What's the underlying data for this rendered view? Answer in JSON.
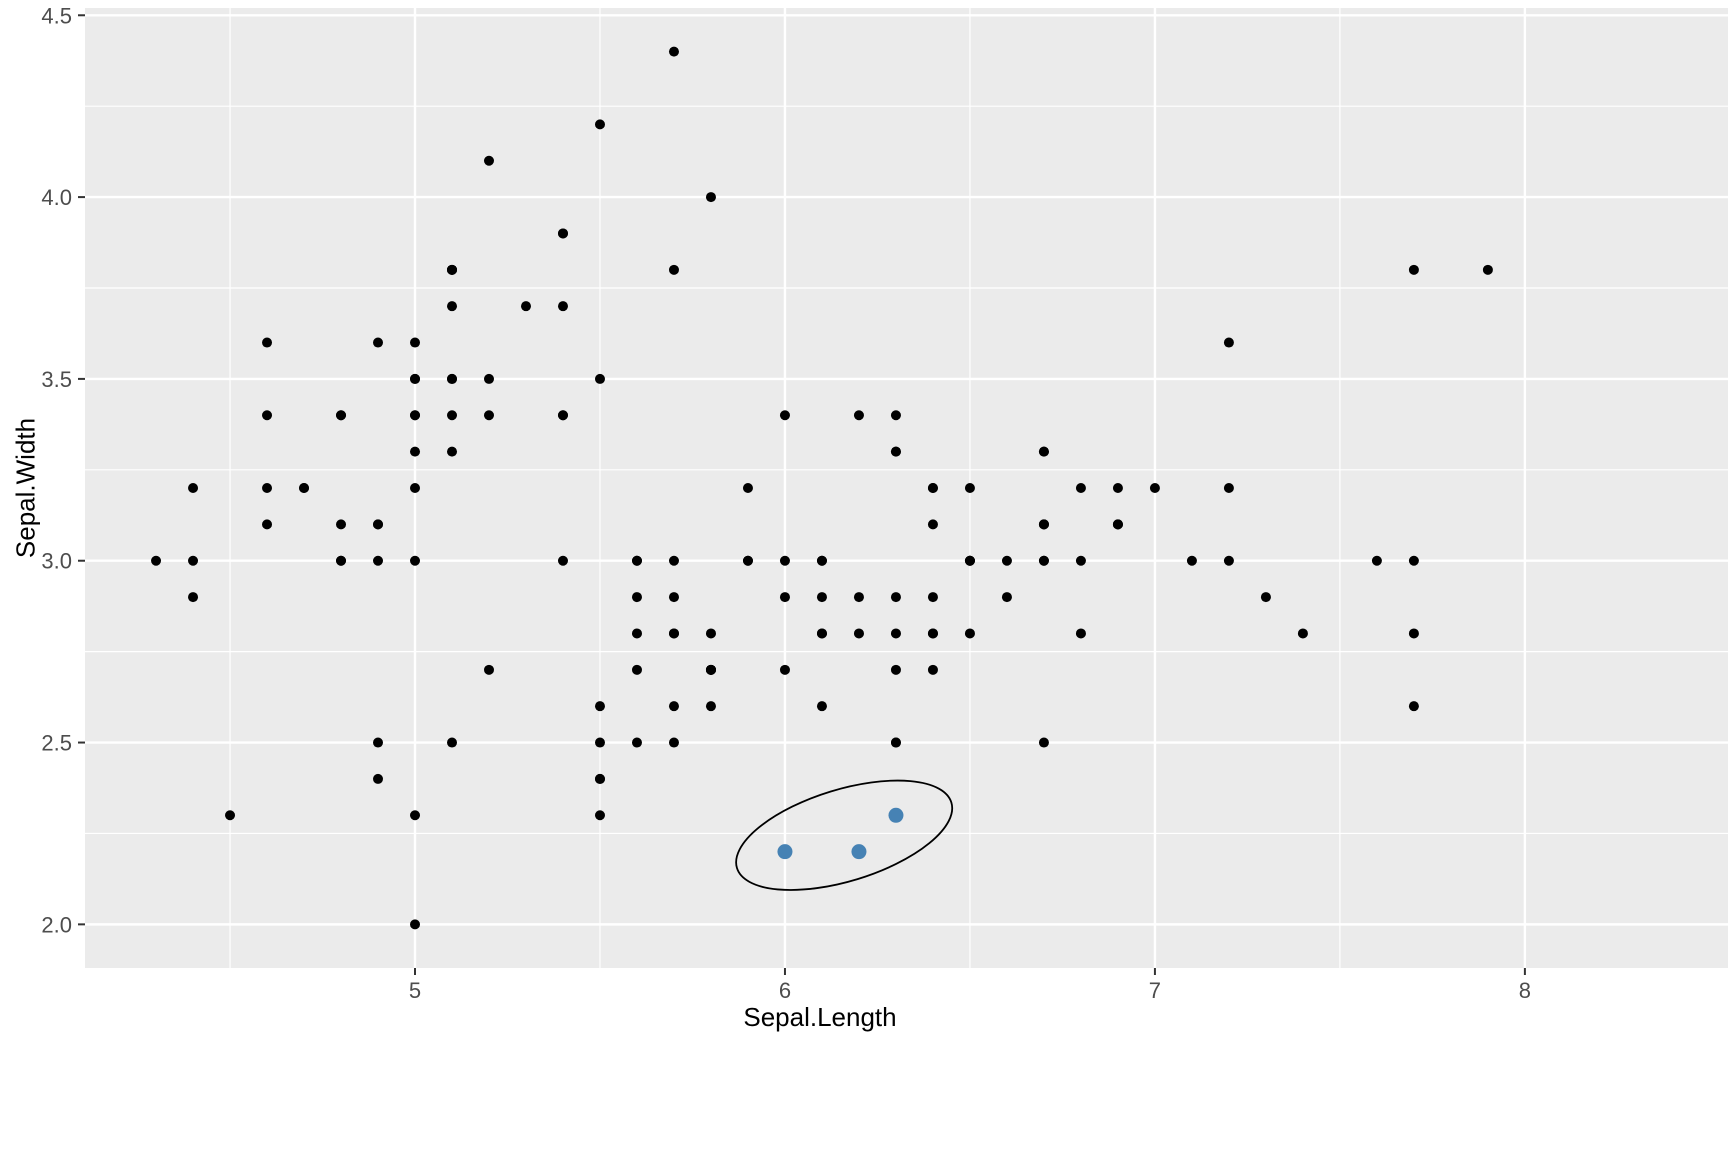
{
  "chart_data": {
    "type": "scatter",
    "title": "",
    "xlabel": "Sepal.Length",
    "ylabel": "Sepal.Width",
    "xlim": [
      4.108,
      8.549
    ],
    "ylim": [
      1.88,
      4.52
    ],
    "x_tick_values": [
      5,
      6,
      7,
      8
    ],
    "x_tick_labels": [
      "5",
      "6",
      "7",
      "8"
    ],
    "y_tick_values": [
      2.0,
      2.5,
      3.0,
      3.5,
      4.0,
      4.5
    ],
    "y_tick_labels": [
      "2.0",
      "2.5",
      "3.0",
      "3.5",
      "4.0",
      "4.5"
    ],
    "x_minor_ticks": [
      4.5,
      5.5,
      6.5,
      7.5
    ],
    "y_minor_ticks": [
      2.25,
      2.75,
      3.25,
      3.75,
      4.25
    ],
    "grid": "on",
    "legend": "none",
    "points": [
      [
        5.1,
        3.5
      ],
      [
        4.9,
        3.0
      ],
      [
        4.7,
        3.2
      ],
      [
        4.6,
        3.1
      ],
      [
        5.0,
        3.6
      ],
      [
        5.4,
        3.9
      ],
      [
        4.6,
        3.4
      ],
      [
        5.0,
        3.4
      ],
      [
        4.4,
        2.9
      ],
      [
        4.9,
        3.1
      ],
      [
        5.4,
        3.7
      ],
      [
        4.8,
        3.4
      ],
      [
        4.8,
        3.0
      ],
      [
        4.3,
        3.0
      ],
      [
        5.8,
        4.0
      ],
      [
        5.7,
        4.4
      ],
      [
        5.4,
        3.9
      ],
      [
        5.1,
        3.5
      ],
      [
        5.7,
        3.8
      ],
      [
        5.1,
        3.8
      ],
      [
        5.4,
        3.4
      ],
      [
        5.1,
        3.7
      ],
      [
        4.6,
        3.6
      ],
      [
        5.1,
        3.3
      ],
      [
        4.8,
        3.4
      ],
      [
        5.0,
        3.0
      ],
      [
        5.0,
        3.4
      ],
      [
        5.2,
        3.5
      ],
      [
        5.2,
        3.4
      ],
      [
        4.7,
        3.2
      ],
      [
        4.8,
        3.1
      ],
      [
        5.4,
        3.4
      ],
      [
        5.2,
        4.1
      ],
      [
        5.5,
        4.2
      ],
      [
        4.9,
        3.1
      ],
      [
        5.0,
        3.2
      ],
      [
        5.5,
        3.5
      ],
      [
        4.9,
        3.6
      ],
      [
        4.4,
        3.0
      ],
      [
        5.1,
        3.4
      ],
      [
        5.0,
        3.5
      ],
      [
        4.5,
        2.3
      ],
      [
        4.4,
        3.2
      ],
      [
        5.0,
        3.5
      ],
      [
        5.1,
        3.8
      ],
      [
        4.8,
        3.0
      ],
      [
        5.1,
        3.8
      ],
      [
        4.6,
        3.2
      ],
      [
        5.3,
        3.7
      ],
      [
        5.0,
        3.3
      ],
      [
        7.0,
        3.2
      ],
      [
        6.4,
        3.2
      ],
      [
        6.9,
        3.1
      ],
      [
        5.5,
        2.3
      ],
      [
        6.5,
        2.8
      ],
      [
        5.7,
        2.8
      ],
      [
        6.3,
        3.3
      ],
      [
        4.9,
        2.4
      ],
      [
        6.6,
        2.9
      ],
      [
        5.2,
        2.7
      ],
      [
        5.0,
        2.0
      ],
      [
        5.9,
        3.0
      ],
      [
        6.0,
        2.2
      ],
      [
        6.1,
        2.9
      ],
      [
        5.6,
        2.9
      ],
      [
        6.7,
        3.1
      ],
      [
        5.6,
        3.0
      ],
      [
        5.8,
        2.7
      ],
      [
        6.2,
        2.2
      ],
      [
        5.6,
        2.5
      ],
      [
        5.9,
        3.2
      ],
      [
        6.1,
        2.8
      ],
      [
        6.3,
        2.5
      ],
      [
        6.1,
        2.8
      ],
      [
        6.4,
        2.9
      ],
      [
        6.6,
        3.0
      ],
      [
        6.8,
        2.8
      ],
      [
        6.7,
        3.0
      ],
      [
        6.0,
        2.9
      ],
      [
        5.7,
        2.6
      ],
      [
        5.5,
        2.4
      ],
      [
        5.5,
        2.4
      ],
      [
        5.8,
        2.7
      ],
      [
        6.0,
        2.7
      ],
      [
        5.4,
        3.0
      ],
      [
        6.0,
        3.4
      ],
      [
        6.7,
        3.1
      ],
      [
        6.3,
        2.3
      ],
      [
        5.6,
        3.0
      ],
      [
        5.5,
        2.5
      ],
      [
        5.5,
        2.6
      ],
      [
        6.1,
        3.0
      ],
      [
        5.8,
        2.6
      ],
      [
        5.0,
        2.3
      ],
      [
        5.6,
        2.7
      ],
      [
        5.7,
        3.0
      ],
      [
        5.7,
        2.9
      ],
      [
        6.2,
        2.9
      ],
      [
        5.1,
        2.5
      ],
      [
        5.7,
        2.8
      ],
      [
        6.3,
        3.3
      ],
      [
        5.8,
        2.7
      ],
      [
        7.1,
        3.0
      ],
      [
        6.3,
        2.9
      ],
      [
        6.5,
        3.0
      ],
      [
        7.6,
        3.0
      ],
      [
        4.9,
        2.5
      ],
      [
        7.3,
        2.9
      ],
      [
        6.7,
        2.5
      ],
      [
        7.2,
        3.6
      ],
      [
        6.5,
        3.2
      ],
      [
        6.4,
        2.7
      ],
      [
        6.8,
        3.0
      ],
      [
        5.7,
        2.5
      ],
      [
        5.8,
        2.8
      ],
      [
        6.4,
        3.2
      ],
      [
        6.5,
        3.0
      ],
      [
        7.7,
        3.8
      ],
      [
        7.7,
        2.6
      ],
      [
        6.0,
        2.2
      ],
      [
        6.9,
        3.2
      ],
      [
        5.6,
        2.8
      ],
      [
        7.7,
        2.8
      ],
      [
        6.3,
        2.7
      ],
      [
        6.7,
        3.3
      ],
      [
        7.2,
        3.2
      ],
      [
        6.2,
        2.8
      ],
      [
        6.1,
        3.0
      ],
      [
        6.4,
        2.8
      ],
      [
        7.2,
        3.0
      ],
      [
        7.4,
        2.8
      ],
      [
        7.9,
        3.8
      ],
      [
        6.4,
        2.8
      ],
      [
        6.3,
        2.8
      ],
      [
        6.1,
        2.6
      ],
      [
        7.7,
        3.0
      ],
      [
        6.3,
        3.4
      ],
      [
        6.4,
        3.1
      ],
      [
        6.0,
        3.0
      ],
      [
        6.9,
        3.1
      ],
      [
        6.7,
        3.1
      ],
      [
        6.9,
        3.1
      ],
      [
        5.8,
        2.7
      ],
      [
        6.8,
        3.2
      ],
      [
        6.7,
        3.3
      ],
      [
        6.7,
        3.0
      ],
      [
        6.3,
        2.5
      ],
      [
        6.5,
        3.0
      ],
      [
        6.2,
        3.4
      ],
      [
        5.9,
        3.0
      ]
    ],
    "highlighted_points": [
      [
        6.0,
        2.2
      ],
      [
        6.2,
        2.2
      ],
      [
        6.3,
        2.3
      ]
    ],
    "annotation": {
      "shape": "ellipse",
      "cx": 6.16,
      "cy": 2.245,
      "rx": 0.303,
      "ry": 0.126,
      "rotation_deg": -17
    },
    "style": {
      "panel_bg": "#EBEBEB",
      "grid_color": "#FFFFFF",
      "point_color": "#000000",
      "highlight_color": "#4682B4",
      "tick_color": "#333333",
      "tick_label_color": "#4D4D4D",
      "axis_title_color": "#000000",
      "annotation_color": "#000000"
    }
  }
}
